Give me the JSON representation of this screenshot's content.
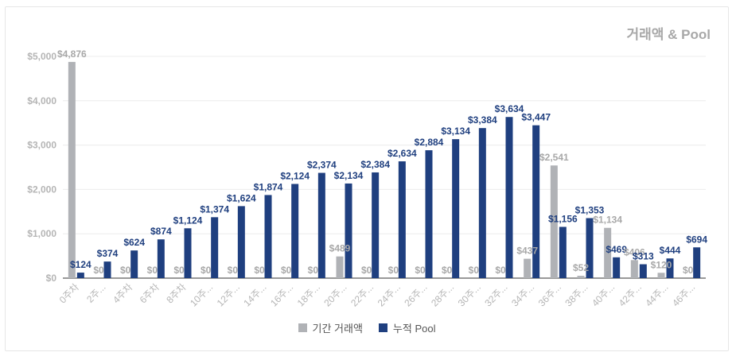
{
  "chart_data": {
    "type": "bar",
    "title": "거래액 & Pool",
    "categories": [
      "0주차",
      "2주...",
      "4주차",
      "6주차",
      "8주차",
      "10주...",
      "12주...",
      "14주...",
      "16주...",
      "18주...",
      "20주...",
      "22주...",
      "24주...",
      "26주...",
      "28주...",
      "30주...",
      "32주...",
      "34주...",
      "36주...",
      "38주...",
      "40주...",
      "42주...",
      "44주...",
      "46주..."
    ],
    "series": [
      {
        "name": "기간 거래액",
        "color": "#b0b2b6",
        "values": [
          4876,
          0,
          0,
          0,
          0,
          0,
          0,
          0,
          0,
          0,
          489,
          0,
          0,
          0,
          0,
          0,
          0,
          437,
          2541,
          52,
          1134,
          406,
          120,
          0
        ],
        "labels": [
          "$4,876",
          "$0",
          "$0",
          "$0",
          "$0",
          "$0",
          "$0",
          "$0",
          "$0",
          "$0",
          "$489",
          "$0",
          "$0",
          "$0",
          "$0",
          "$0",
          "$0",
          "$437",
          "$2,541",
          "$52",
          "$1,134",
          "$406",
          "$120",
          "$0"
        ]
      },
      {
        "name": "누적 Pool",
        "color": "#1f3f7f",
        "values": [
          124,
          374,
          624,
          874,
          1124,
          1374,
          1624,
          1874,
          2124,
          2374,
          2134,
          2384,
          2634,
          2884,
          3134,
          3384,
          3634,
          3447,
          1156,
          1353,
          469,
          313,
          444,
          694
        ],
        "labels": [
          "$124",
          "$374",
          "$624",
          "$874",
          "$1,124",
          "$1,374",
          "$1,624",
          "$1,874",
          "$2,124",
          "$2,374",
          "$2,134",
          "$2,384",
          "$2,634",
          "$2,884",
          "$3,134",
          "$3,384",
          "$3,634",
          "$3,447",
          "$1,156",
          "$1,353",
          "$469",
          "$313",
          "$444",
          "$694"
        ]
      }
    ],
    "ylim": [
      0,
      5000
    ],
    "yticks": [
      0,
      1000,
      2000,
      3000,
      4000,
      5000
    ],
    "ytick_labels": [
      "$0",
      "$1,000",
      "$2,000",
      "$3,000",
      "$4,000",
      "$5,000"
    ],
    "grid": true,
    "legend": "bottom"
  }
}
